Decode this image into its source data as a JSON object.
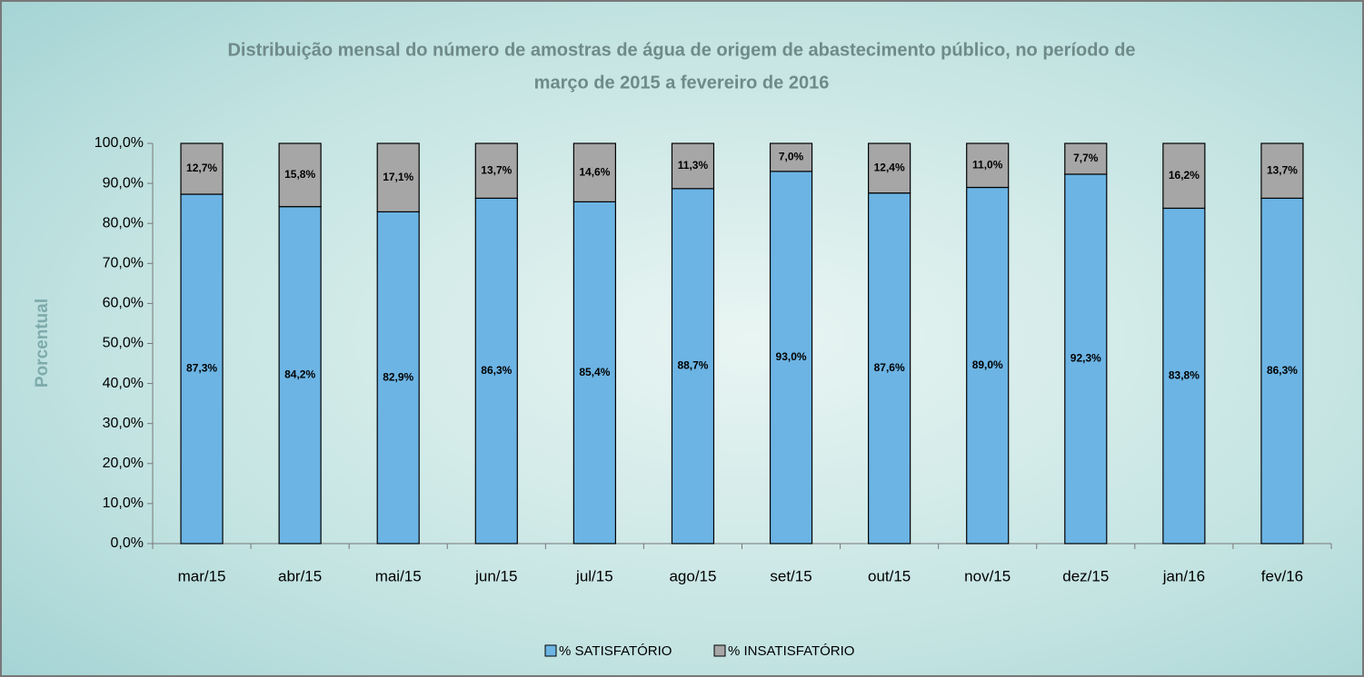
{
  "chart_data": {
    "type": "stacked_bar",
    "title": [
      "Distribuição mensal do número de amostras de água de origem de abastecimento público, no período de",
      "março de  2015 a fevereiro de 2016"
    ],
    "y_label": "Porcentual",
    "categories": [
      "mar/15",
      "abr/15",
      "mai/15",
      "jun/15",
      "jul/15",
      "ago/15",
      "set/15",
      "out/15",
      "nov/15",
      "dez/15",
      "jan/16",
      "fev/16"
    ],
    "series": [
      {
        "name": "% SATISFATÓRIO",
        "color": "#6cb4e4",
        "values": [
          87.3,
          84.2,
          82.9,
          86.3,
          85.4,
          88.7,
          93.0,
          87.6,
          89.0,
          92.3,
          83.8,
          86.3
        ],
        "value_labels": [
          "87,3%",
          "84,2%",
          "82,9%",
          "86,3%",
          "85,4%",
          "88,7%",
          "93,0%",
          "87,6%",
          "89,0%",
          "92,3%",
          "83,8%",
          "86,3%"
        ]
      },
      {
        "name": "% INSATISFATÓRIO",
        "color": "#a6a6a6",
        "values": [
          12.7,
          15.8,
          17.1,
          13.7,
          14.6,
          11.3,
          7.0,
          12.4,
          11.0,
          7.7,
          16.2,
          13.7
        ],
        "value_labels": [
          "12,7%",
          "15,8%",
          "17,1%",
          "13,7%",
          "14,6%",
          "11,3%",
          "7,0%",
          "12,4%",
          "11,0%",
          "7,7%",
          "16,2%",
          "13,7%"
        ]
      }
    ],
    "ylim": [
      0,
      100
    ],
    "yticks": [
      {
        "value": 0,
        "label": "0,0%"
      },
      {
        "value": 10,
        "label": "10,0%"
      },
      {
        "value": 20,
        "label": "20,0%"
      },
      {
        "value": 30,
        "label": "30,0%"
      },
      {
        "value": 40,
        "label": "40,0%"
      },
      {
        "value": 50,
        "label": "50,0%"
      },
      {
        "value": 60,
        "label": "60,0%"
      },
      {
        "value": 70,
        "label": "70,0%"
      },
      {
        "value": 80,
        "label": "80,0%"
      },
      {
        "value": 90,
        "label": "90,0%"
      },
      {
        "value": 100,
        "label": "100,0%"
      }
    ],
    "grid": false,
    "legend": "bottom"
  }
}
